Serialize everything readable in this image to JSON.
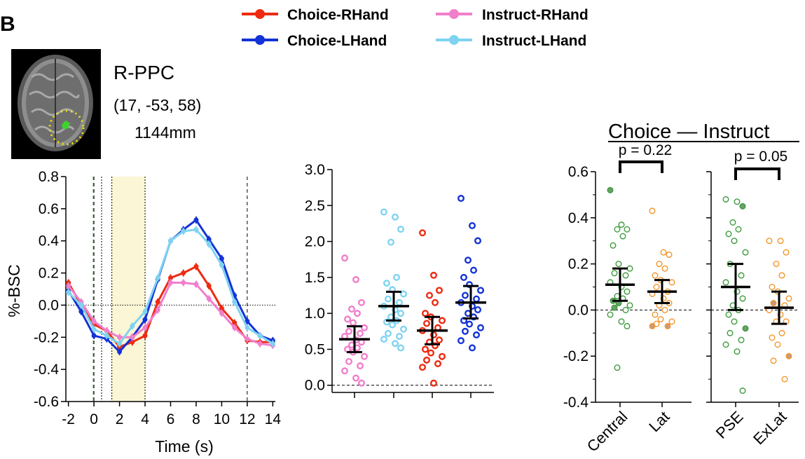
{
  "panel_label": "B",
  "legend": [
    {
      "label": "Choice-RHand",
      "color": "#ee2a10"
    },
    {
      "label": "Choice-LHand",
      "color": "#1433d6"
    },
    {
      "label": "Instruct-RHand",
      "color": "#f07fcc"
    },
    {
      "label": "Instruct-LHand",
      "color": "#7fd3f1"
    }
  ],
  "roi": {
    "name": "R-PPC",
    "coords": "(17, -53, 58)",
    "volume": "1144mm"
  },
  "contrast_title": "Choice — Instruct",
  "pvalues": [
    "p = 0.22",
    "p = 0.05"
  ],
  "chart_data": [
    {
      "type": "line",
      "xlabel": "Time (s)",
      "ylabel": "%-BSC",
      "xlim": [
        -2.2,
        14.2
      ],
      "ylim": [
        -0.6,
        0.8
      ],
      "xticks": [
        -2,
        0,
        2,
        4,
        6,
        8,
        10,
        12,
        14
      ],
      "yticks": [
        -0.6,
        -0.4,
        -0.2,
        0.0,
        0.2,
        0.4,
        0.6,
        0.8
      ],
      "vertical_lines": [
        0,
        0.6,
        1.4,
        4,
        12
      ],
      "shaded_region": [
        1.4,
        4
      ],
      "reference_line": 0,
      "x": [
        -2,
        -1,
        0,
        1,
        2,
        3,
        4,
        5,
        6,
        7,
        8,
        9,
        10,
        11,
        12,
        13,
        14
      ],
      "series": [
        {
          "name": "Choice-RHand",
          "color": "#ee2a10",
          "values": [
            0.14,
            0.0,
            -0.12,
            -0.16,
            -0.26,
            -0.23,
            -0.19,
            0.02,
            0.17,
            0.2,
            0.24,
            0.12,
            -0.02,
            -0.11,
            -0.22,
            -0.23,
            -0.23
          ]
        },
        {
          "name": "Choice-LHand",
          "color": "#1433d6",
          "values": [
            0.09,
            -0.04,
            -0.19,
            -0.21,
            -0.29,
            -0.2,
            -0.09,
            0.16,
            0.4,
            0.47,
            0.53,
            0.41,
            0.29,
            0.06,
            -0.1,
            -0.19,
            -0.22
          ]
        },
        {
          "name": "Instruct-RHand",
          "color": "#f07fcc",
          "values": [
            0.12,
            0.02,
            -0.1,
            -0.16,
            -0.2,
            -0.2,
            -0.14,
            -0.03,
            0.14,
            0.14,
            0.13,
            0.04,
            -0.05,
            -0.14,
            -0.21,
            -0.24,
            -0.25
          ]
        },
        {
          "name": "Instruct-LHand",
          "color": "#7fd3f1",
          "values": [
            0.08,
            0.0,
            -0.15,
            -0.19,
            -0.24,
            -0.13,
            -0.04,
            0.17,
            0.4,
            0.46,
            0.47,
            0.38,
            0.25,
            0.02,
            -0.14,
            -0.19,
            -0.24
          ]
        }
      ]
    },
    {
      "type": "scatter",
      "ylim": [
        -0.1,
        3.0
      ],
      "yticks": [
        0.0,
        0.5,
        1.0,
        1.5,
        2.0,
        2.5,
        3.0
      ],
      "reference_line": 0,
      "groups": [
        {
          "name": "Instruct-RHand",
          "color": "#f07fcc",
          "mean": 0.64,
          "ci": [
            0.46,
            0.82
          ],
          "values": [
            1.77,
            1.47,
            1.15,
            1.06,
            1.0,
            0.92,
            0.87,
            0.8,
            0.75,
            0.72,
            0.68,
            0.63,
            0.6,
            0.56,
            0.52,
            0.5,
            0.46,
            0.4,
            0.33,
            0.27,
            0.2,
            0.1,
            0.03
          ]
        },
        {
          "name": "Instruct-LHand",
          "color": "#7fd3f1",
          "mean": 1.1,
          "ci": [
            0.9,
            1.3
          ],
          "values": [
            2.41,
            2.34,
            2.17,
            1.99,
            1.5,
            1.42,
            1.33,
            1.27,
            1.2,
            1.15,
            1.1,
            1.05,
            1.0,
            0.95,
            0.9,
            0.88,
            0.84,
            0.78,
            0.72,
            0.68,
            0.64,
            0.58,
            0.52
          ]
        },
        {
          "name": "Choice-RHand",
          "color": "#ee2a10",
          "mean": 0.76,
          "ci": [
            0.57,
            0.95
          ],
          "values": [
            2.12,
            1.53,
            1.32,
            1.25,
            1.15,
            1.0,
            0.95,
            0.9,
            0.86,
            0.8,
            0.76,
            0.7,
            0.63,
            0.6,
            0.55,
            0.5,
            0.45,
            0.4,
            0.35,
            0.3,
            0.25,
            0.03
          ]
        },
        {
          "name": "Choice-LHand",
          "color": "#1433d6",
          "mean": 1.15,
          "ci": [
            0.93,
            1.38
          ],
          "values": [
            2.6,
            2.22,
            2.01,
            1.74,
            1.6,
            1.5,
            1.4,
            1.32,
            1.25,
            1.2,
            1.15,
            1.1,
            1.05,
            1.0,
            0.95,
            0.9,
            0.85,
            0.8,
            0.75,
            0.7,
            0.62,
            0.52
          ]
        }
      ]
    },
    {
      "type": "scatter",
      "ylim": [
        -0.4,
        0.6
      ],
      "yticks": [
        -0.4,
        -0.2,
        0.0,
        0.2,
        0.4,
        0.6
      ],
      "reference_line": 0,
      "panels": [
        {
          "categories": [
            "Central",
            "Lat"
          ],
          "groups": [
            {
              "name": "Central",
              "color": "#3e9a3e",
              "mean": 0.11,
              "ci": [
                0.04,
                0.18
              ],
              "values": [
                0.52,
                0.37,
                0.35,
                0.35,
                0.32,
                0.28,
                0.2,
                0.18,
                0.16,
                0.15,
                0.12,
                0.1,
                0.08,
                0.06,
                0.05,
                0.04,
                0.03,
                0.02,
                0.01,
                0.0,
                -0.02,
                -0.05,
                -0.07,
                -0.25
              ],
              "filled": [
                0.52,
                0.04,
                0.03,
                0.01
              ]
            },
            {
              "name": "Lat",
              "color": "#f3962c",
              "mean": 0.08,
              "ci": [
                0.03,
                0.13
              ],
              "values": [
                0.43,
                0.25,
                0.24,
                0.2,
                0.18,
                0.15,
                0.13,
                0.12,
                0.1,
                0.08,
                0.07,
                0.05,
                0.03,
                0.02,
                0.0,
                -0.02,
                -0.04,
                -0.05,
                -0.06,
                -0.07,
                -0.07
              ],
              "filled": [
                -0.07
              ]
            }
          ],
          "pvalue": "p = 0.22"
        },
        {
          "categories": [
            "PSE",
            "ExLat"
          ],
          "groups": [
            {
              "name": "PSE",
              "color": "#3e9a3e",
              "mean": 0.1,
              "ci": [
                0.0,
                0.2
              ],
              "values": [
                0.48,
                0.47,
                0.45,
                0.38,
                0.35,
                0.33,
                0.3,
                0.25,
                0.2,
                0.15,
                0.12,
                0.08,
                0.05,
                0.02,
                0.0,
                -0.02,
                -0.05,
                -0.08,
                -0.1,
                -0.13,
                -0.15,
                -0.18,
                -0.35
              ],
              "filled": [
                0.45,
                0.03,
                -0.08
              ]
            },
            {
              "name": "ExLat",
              "color": "#f3962c",
              "mean": 0.01,
              "ci": [
                -0.06,
                0.08
              ],
              "values": [
                0.3,
                0.3,
                0.25,
                0.2,
                0.15,
                0.1,
                0.08,
                0.05,
                0.03,
                0.02,
                0.0,
                -0.02,
                -0.05,
                -0.05,
                -0.1,
                -0.12,
                -0.15,
                -0.2,
                -0.22,
                -0.3
              ],
              "filled": [
                0.03,
                -0.2
              ]
            }
          ],
          "pvalue": "p = 0.05"
        }
      ]
    }
  ]
}
